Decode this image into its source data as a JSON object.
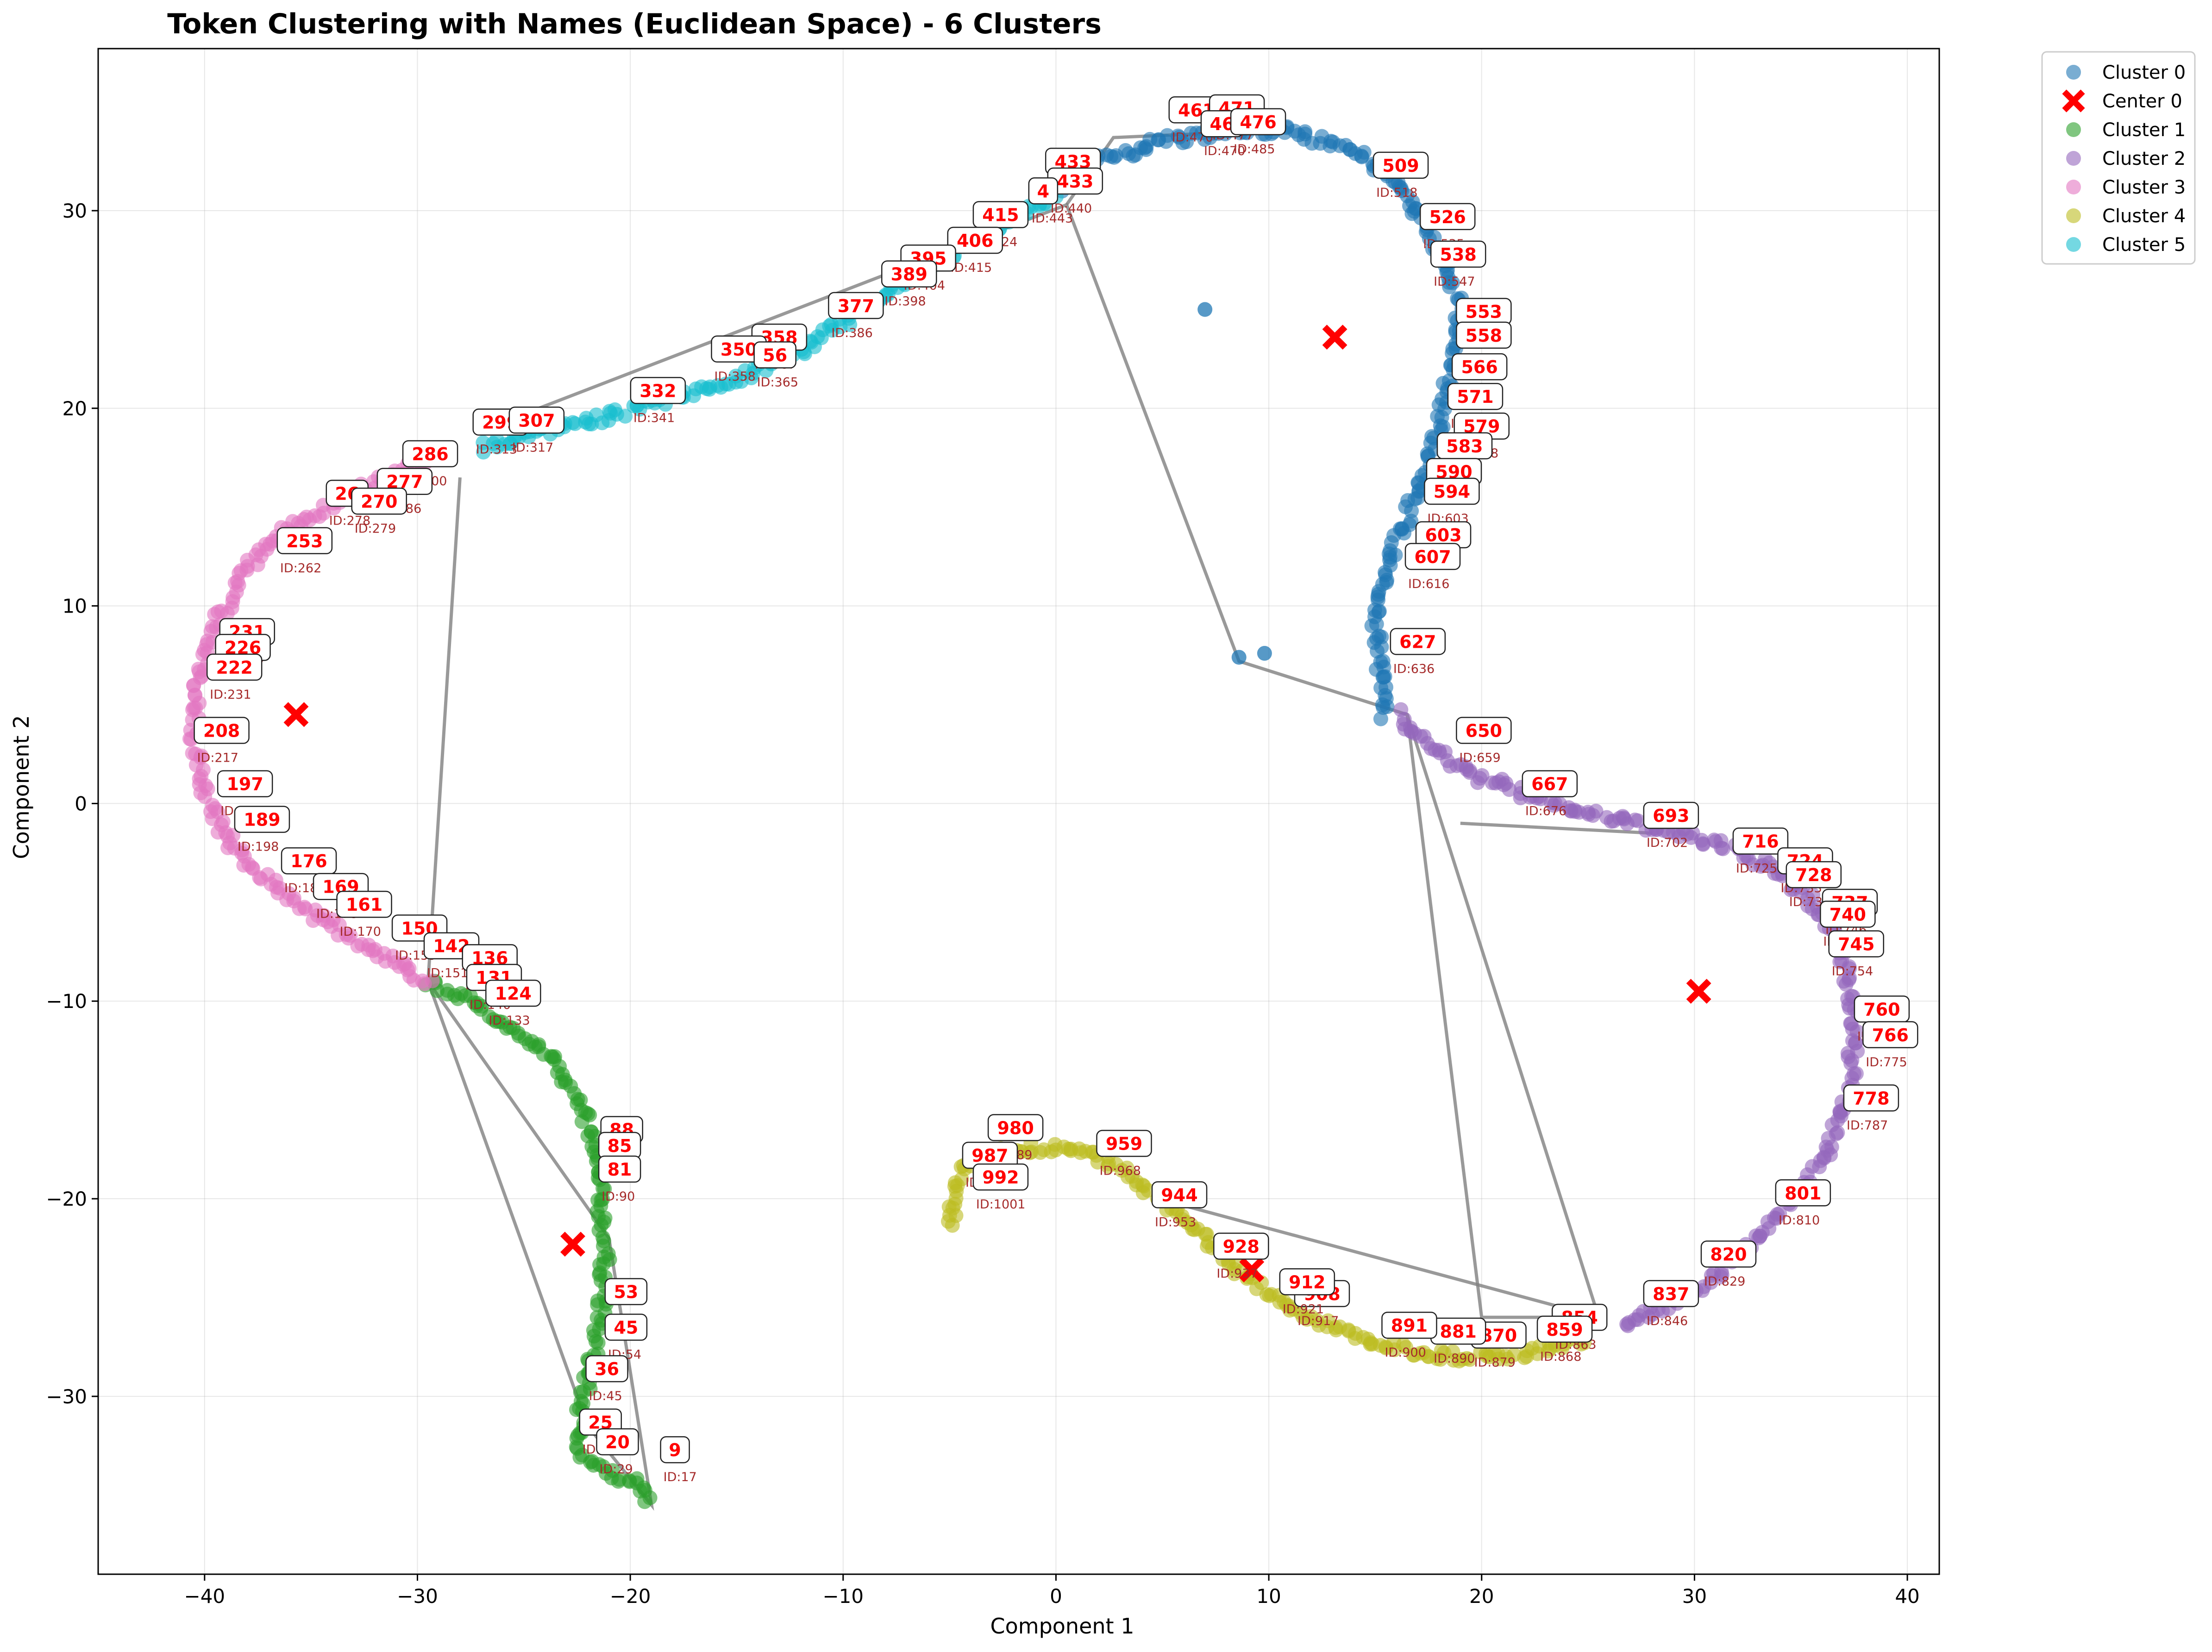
{
  "chart_data": {
    "type": "scatter",
    "title": "Token Clustering with Names (Euclidean Space) - 6 Clusters",
    "xlabel": "Component 1",
    "ylabel": "Component 2",
    "xlim": [
      -45,
      41.5
    ],
    "ylim": [
      -39,
      38.2
    ],
    "xticks": [
      -40,
      -30,
      -20,
      -10,
      0,
      10,
      20,
      30,
      40
    ],
    "yticks": [
      -30,
      -20,
      -10,
      0,
      10,
      20,
      30
    ],
    "grid": true,
    "legend_position": "outside-top-right",
    "legend": [
      {
        "label": "Cluster 0",
        "kind": "dot",
        "color": "#1f77b4"
      },
      {
        "label": "Center 0",
        "kind": "cross",
        "color": "#ff0000"
      },
      {
        "label": "Cluster 1",
        "kind": "dot",
        "color": "#2ca02c"
      },
      {
        "label": "Cluster 2",
        "kind": "dot",
        "color": "#9467bd"
      },
      {
        "label": "Cluster 3",
        "kind": "dot",
        "color": "#e377c2"
      },
      {
        "label": "Cluster 4",
        "kind": "dot",
        "color": "#bcbd22"
      },
      {
        "label": "Cluster 5",
        "kind": "dot",
        "color": "#17becf"
      }
    ],
    "clusters": [
      {
        "name": "Cluster 0",
        "color": "#1f77b4",
        "path": [
          [
            15.5,
            4.5
          ],
          [
            15.2,
            7
          ],
          [
            15,
            9.5
          ],
          [
            15.5,
            12
          ],
          [
            16.5,
            14.5
          ],
          [
            17.5,
            17
          ],
          [
            18,
            19.5
          ],
          [
            18.5,
            22
          ],
          [
            19,
            24.5
          ],
          [
            18.5,
            27
          ],
          [
            17.5,
            29
          ],
          [
            16,
            31.5
          ],
          [
            14,
            33
          ],
          [
            11,
            34
          ],
          [
            8,
            34
          ],
          [
            5,
            33.5
          ],
          [
            2,
            32.5
          ],
          [
            0,
            31
          ]
        ],
        "outliers": [
          [
            7,
            25
          ],
          [
            9.8,
            7.6
          ],
          [
            8.6,
            7.4
          ]
        ]
      },
      {
        "name": "Cluster 1",
        "color": "#2ca02c",
        "path": [
          [
            -29.5,
            -9
          ],
          [
            -27.5,
            -10
          ],
          [
            -25.5,
            -11.5
          ],
          [
            -23.5,
            -13
          ],
          [
            -22.5,
            -15
          ],
          [
            -21.8,
            -17
          ],
          [
            -21.5,
            -19
          ],
          [
            -21.3,
            -21
          ],
          [
            -21.2,
            -23
          ],
          [
            -21.3,
            -25
          ],
          [
            -21.6,
            -27
          ],
          [
            -22,
            -29
          ],
          [
            -22.4,
            -31
          ],
          [
            -22.3,
            -33
          ],
          [
            -21,
            -33.8
          ],
          [
            -19.5,
            -34.5
          ],
          [
            -19,
            -35.5
          ]
        ]
      },
      {
        "name": "Cluster 2",
        "color": "#9467bd",
        "path": [
          [
            16,
            4.5
          ],
          [
            17.5,
            3
          ],
          [
            19.5,
            1.5
          ],
          [
            22,
            0.5
          ],
          [
            25,
            -0.5
          ],
          [
            28,
            -1.2
          ],
          [
            31,
            -2
          ],
          [
            33.5,
            -3.2
          ],
          [
            35.5,
            -5
          ],
          [
            36.8,
            -7
          ],
          [
            37.4,
            -9.5
          ],
          [
            37.5,
            -12
          ],
          [
            37.3,
            -14.5
          ],
          [
            36.5,
            -17
          ],
          [
            35,
            -19.5
          ],
          [
            33,
            -22
          ],
          [
            30.5,
            -24.3
          ],
          [
            28,
            -25.8
          ],
          [
            26.5,
            -26.6
          ]
        ]
      },
      {
        "name": "Cluster 3",
        "color": "#e377c2",
        "path": [
          [
            -29.5,
            -9
          ],
          [
            -32,
            -7.5
          ],
          [
            -34.5,
            -5.8
          ],
          [
            -37,
            -4
          ],
          [
            -38.8,
            -2
          ],
          [
            -40,
            0.5
          ],
          [
            -40.5,
            3
          ],
          [
            -40.3,
            6
          ],
          [
            -39.5,
            9
          ],
          [
            -38,
            12
          ],
          [
            -36,
            14
          ],
          [
            -34,
            15.2
          ],
          [
            -32,
            16.2
          ],
          [
            -29.5,
            17.5
          ]
        ]
      },
      {
        "name": "Cluster 4",
        "color": "#bcbd22",
        "path": [
          [
            -5,
            -21.3
          ],
          [
            -4.7,
            -19.5
          ],
          [
            -4.3,
            -18.2
          ],
          [
            -3,
            -17.7
          ],
          [
            -1,
            -17.4
          ],
          [
            1,
            -17.5
          ],
          [
            3,
            -18.5
          ],
          [
            5,
            -20
          ],
          [
            7,
            -22
          ],
          [
            9,
            -24
          ],
          [
            11,
            -25.5
          ],
          [
            13,
            -26.5
          ],
          [
            15,
            -27.3
          ],
          [
            17,
            -27.8
          ],
          [
            19,
            -28
          ],
          [
            21,
            -28
          ],
          [
            23,
            -27.6
          ],
          [
            25,
            -27
          ]
        ]
      },
      {
        "name": "Cluster 5",
        "color": "#17becf",
        "path": [
          [
            -27,
            18
          ],
          [
            -24,
            18.8
          ],
          [
            -21,
            19.6
          ],
          [
            -18,
            20.5
          ],
          [
            -15,
            21.5
          ],
          [
            -12,
            23
          ],
          [
            -9,
            25
          ],
          [
            -6,
            27
          ],
          [
            -3,
            29
          ],
          [
            0,
            30.7
          ]
        ]
      }
    ],
    "centers": [
      {
        "name": "Center 0",
        "x": 13.1,
        "y": 23.6
      },
      {
        "x": -22.7,
        "y": -22.3
      },
      {
        "x": 30.2,
        "y": -9.5
      },
      {
        "x": -35.7,
        "y": 4.5
      },
      {
        "x": 9.2,
        "y": -23.6
      }
    ],
    "connection_lines": [
      [
        [
          -28,
          16.5
        ],
        [
          -29.5,
          -9
        ],
        [
          -22,
          -31.5
        ],
        [
          -19,
          -35.5
        ],
        [
          -21,
          -22
        ],
        [
          -29.5,
          -9
        ]
      ],
      [
        [
          -25.5,
          19.5
        ],
        [
          0.5,
          30.3
        ],
        [
          8.6,
          7.2
        ],
        [
          16.5,
          4.5
        ],
        [
          20,
          -26
        ],
        [
          25.5,
          -26
        ],
        [
          16.5,
          4.5
        ]
      ],
      [
        [
          0.5,
          30.3
        ],
        [
          2.7,
          33.7
        ],
        [
          9,
          34
        ]
      ],
      [
        [
          25.5,
          -26
        ],
        [
          5.5,
          -20.2
        ]
      ],
      [
        [
          19,
          -1
        ],
        [
          28,
          -1.5
        ]
      ]
    ],
    "annotations": [
      {
        "name": "461",
        "id": "ID:470",
        "x": 6.6,
        "y": 35.1
      },
      {
        "name": "471",
        "id": "ID:477",
        "x": 8.5,
        "y": 35.2
      },
      {
        "name": "46",
        "id": "ID:470",
        "x": 7.8,
        "y": 34.4
      },
      {
        "name": "476",
        "id": "ID:485",
        "x": 9.5,
        "y": 34.5
      },
      {
        "name": "433",
        "id": "ID:442",
        "x": 0.8,
        "y": 32.5
      },
      {
        "name": "433",
        "id": "ID:440",
        "x": 0.9,
        "y": 31.5
      },
      {
        "name": "4",
        "id": "ID:443",
        "x": -0.6,
        "y": 31
      },
      {
        "name": "415",
        "id": "ID:424",
        "x": -2.6,
        "y": 29.8
      },
      {
        "name": "406",
        "id": "ID:415",
        "x": -3.8,
        "y": 28.5
      },
      {
        "name": "395",
        "id": "ID:404",
        "x": -6,
        "y": 27.6
      },
      {
        "name": "389",
        "id": "ID:398",
        "x": -6.9,
        "y": 26.8
      },
      {
        "name": "377",
        "id": "ID:386",
        "x": -9.4,
        "y": 25.2
      },
      {
        "name": "358",
        "id": "ID:367",
        "x": -13,
        "y": 23.6
      },
      {
        "name": "350",
        "id": "ID:358",
        "x": -14.9,
        "y": 23
      },
      {
        "name": "56",
        "id": "ID:365",
        "x": -13.2,
        "y": 22.7
      },
      {
        "name": "332",
        "id": "ID:341",
        "x": -18.7,
        "y": 20.9
      },
      {
        "name": "299",
        "id": "ID:313",
        "x": -26.1,
        "y": 19.3
      },
      {
        "name": "307",
        "id": "ID:317",
        "x": -24.4,
        "y": 19.4
      },
      {
        "name": "286",
        "id": "ID:300",
        "x": -29.4,
        "y": 17.7
      },
      {
        "name": "277",
        "id": "ID:286",
        "x": -30.6,
        "y": 16.3
      },
      {
        "name": "26",
        "id": "ID:278",
        "x": -33.3,
        "y": 15.7
      },
      {
        "name": "270",
        "id": "ID:279",
        "x": -31.8,
        "y": 15.3
      },
      {
        "name": "253",
        "id": "ID:262",
        "x": -35.3,
        "y": 13.3
      },
      {
        "name": "231",
        "id": "ID:240",
        "x": -38,
        "y": 8.7
      },
      {
        "name": "226",
        "id": "ID:235",
        "x": -38.2,
        "y": 7.9
      },
      {
        "name": "222",
        "id": "ID:231",
        "x": -38.6,
        "y": 6.9
      },
      {
        "name": "208",
        "id": "ID:217",
        "x": -39.2,
        "y": 3.7
      },
      {
        "name": "197",
        "id": "ID:206",
        "x": -38.1,
        "y": 1
      },
      {
        "name": "189",
        "id": "ID:198",
        "x": -37.3,
        "y": -0.8
      },
      {
        "name": "176",
        "id": "ID:185",
        "x": -35.1,
        "y": -2.9
      },
      {
        "name": "169",
        "id": "ID:178",
        "x": -33.6,
        "y": -4.2
      },
      {
        "name": "161",
        "id": "ID:170",
        "x": -32.5,
        "y": -5.1
      },
      {
        "name": "150",
        "id": "ID:159",
        "x": -29.9,
        "y": -6.3
      },
      {
        "name": "142",
        "id": "ID:151",
        "x": -28.4,
        "y": -7.2
      },
      {
        "name": "136",
        "id": "ID:145",
        "x": -26.6,
        "y": -7.8
      },
      {
        "name": "131",
        "id": "ID:140",
        "x": -26.4,
        "y": -8.8
      },
      {
        "name": "124",
        "id": "ID:133",
        "x": -25.5,
        "y": -9.6
      },
      {
        "name": "88",
        "id": "ID:97",
        "x": -20.4,
        "y": -16.5
      },
      {
        "name": "85",
        "id": "ID:94",
        "x": -20.5,
        "y": -17.3
      },
      {
        "name": "81",
        "id": "ID:90",
        "x": -20.5,
        "y": -18.5
      },
      {
        "name": "53",
        "id": "ID:62",
        "x": -20.2,
        "y": -24.7
      },
      {
        "name": "45",
        "id": "ID:54",
        "x": -20.2,
        "y": -26.5
      },
      {
        "name": "36",
        "id": "ID:45",
        "x": -21.1,
        "y": -28.6
      },
      {
        "name": "25",
        "id": "ID:34",
        "x": -21.4,
        "y": -31.3
      },
      {
        "name": "20",
        "id": "ID:29",
        "x": -20.6,
        "y": -32.3
      },
      {
        "name": "9",
        "id": "ID:17",
        "x": -17.9,
        "y": -32.7
      },
      {
        "name": "509",
        "id": "ID:518",
        "x": 16.2,
        "y": 32.3
      },
      {
        "name": "526",
        "id": "ID:535",
        "x": 18.4,
        "y": 29.7
      },
      {
        "name": "538",
        "id": "ID:547",
        "x": 18.9,
        "y": 27.8
      },
      {
        "name": "553",
        "id": "ID:562",
        "x": 20.1,
        "y": 24.9
      },
      {
        "name": "558",
        "id": "ID:567",
        "x": 20.1,
        "y": 23.7
      },
      {
        "name": "566",
        "id": "ID:575",
        "x": 19.9,
        "y": 22.1
      },
      {
        "name": "571",
        "id": "ID:580",
        "x": 19.7,
        "y": 20.6
      },
      {
        "name": "579",
        "id": "ID:588",
        "x": 20,
        "y": 19.1
      },
      {
        "name": "583",
        "id": "ID:592",
        "x": 19.2,
        "y": 18.1
      },
      {
        "name": "590",
        "id": "ID:599",
        "x": 18.7,
        "y": 16.8
      },
      {
        "name": "594",
        "id": "ID:603",
        "x": 18.6,
        "y": 15.8
      },
      {
        "name": "603",
        "id": "ID:612",
        "x": 18.2,
        "y": 13.6
      },
      {
        "name": "607",
        "id": "ID:616",
        "x": 17.7,
        "y": 12.5
      },
      {
        "name": "627",
        "id": "ID:636",
        "x": 17,
        "y": 8.2
      },
      {
        "name": "650",
        "id": "ID:659",
        "x": 20.1,
        "y": 3.7
      },
      {
        "name": "667",
        "id": "ID:676",
        "x": 23.2,
        "y": 1
      },
      {
        "name": "693",
        "id": "ID:702",
        "x": 28.9,
        "y": -0.6
      },
      {
        "name": "716",
        "id": "ID:725",
        "x": 33.1,
        "y": -1.9
      },
      {
        "name": "724",
        "id": "ID:733",
        "x": 35.2,
        "y": -2.9
      },
      {
        "name": "728",
        "id": "ID:737",
        "x": 35.6,
        "y": -3.6
      },
      {
        "name": "737",
        "id": "ID:746",
        "x": 37.3,
        "y": -5
      },
      {
        "name": "740",
        "id": "ID:749",
        "x": 37.2,
        "y": -5.6
      },
      {
        "name": "745",
        "id": "ID:754",
        "x": 37.6,
        "y": -7.1
      },
      {
        "name": "760",
        "id": "ID:769",
        "x": 38.8,
        "y": -10.4
      },
      {
        "name": "766",
        "id": "ID:775",
        "x": 39.2,
        "y": -11.7
      },
      {
        "name": "778",
        "id": "ID:787",
        "x": 38.3,
        "y": -14.9
      },
      {
        "name": "801",
        "id": "ID:810",
        "x": 35.1,
        "y": -19.7
      },
      {
        "name": "820",
        "id": "ID:829",
        "x": 31.6,
        "y": -22.8
      },
      {
        "name": "837",
        "id": "ID:846",
        "x": 28.9,
        "y": -24.8
      },
      {
        "name": "854",
        "id": "ID:863",
        "x": 24.6,
        "y": -26
      },
      {
        "name": "859",
        "id": "ID:868",
        "x": 23.9,
        "y": -26.6
      },
      {
        "name": "870",
        "id": "ID:879",
        "x": 20.8,
        "y": -26.9
      },
      {
        "name": "881",
        "id": "ID:890",
        "x": 18.9,
        "y": -26.7
      },
      {
        "name": "891",
        "id": "ID:900",
        "x": 16.6,
        "y": -26.4
      },
      {
        "name": "908",
        "id": "ID:917",
        "x": 12.5,
        "y": -24.8
      },
      {
        "name": "912",
        "id": "ID:921",
        "x": 11.8,
        "y": -24.2
      },
      {
        "name": "928",
        "id": "ID:937",
        "x": 8.7,
        "y": -22.4
      },
      {
        "name": "944",
        "id": "ID:953",
        "x": 5.8,
        "y": -19.8
      },
      {
        "name": "959",
        "id": "ID:968",
        "x": 3.2,
        "y": -17.2
      },
      {
        "name": "980",
        "id": "ID:989",
        "x": -1.9,
        "y": -16.4
      },
      {
        "name": "987",
        "id": "ID:996",
        "x": -3.1,
        "y": -17.8
      },
      {
        "name": "992",
        "id": "ID:1001",
        "x": -2.6,
        "y": -18.9
      }
    ]
  }
}
